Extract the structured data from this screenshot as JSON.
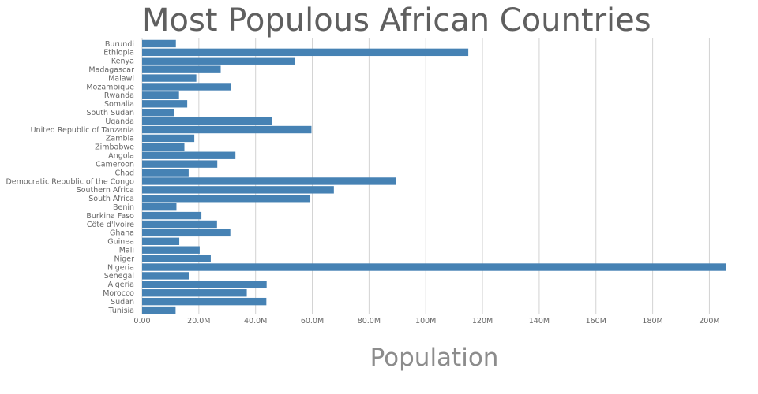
{
  "chart_data": {
    "type": "bar",
    "orientation": "horizontal",
    "title": "Most Populous African Countries",
    "xlabel": "Population",
    "ylabel": "",
    "xlim": [
      0,
      206000000
    ],
    "grid": "vertical",
    "bar_color": "#4682b4",
    "x_ticks": [
      0,
      20000000,
      40000000,
      60000000,
      80000000,
      100000000,
      120000000,
      140000000,
      160000000,
      180000000,
      200000000
    ],
    "x_tick_labels": [
      "0.00",
      "20.0M",
      "40.0M",
      "60.0M",
      "80.0M",
      "100M",
      "120M",
      "140M",
      "160M",
      "180M",
      "200M"
    ],
    "categories": [
      "Burundi",
      "Ethiopia",
      "Kenya",
      "Madagascar",
      "Malawi",
      "Mozambique",
      "Rwanda",
      "Somalia",
      "South Sudan",
      "Uganda",
      "United Republic of Tanzania",
      "Zambia",
      "Zimbabwe",
      "Angola",
      "Cameroon",
      "Chad",
      "Democratic Republic of the Congo",
      "Southern Africa",
      "South Africa",
      "Benin",
      "Burkina Faso",
      "Côte d'Ivoire",
      "Ghana",
      "Guinea",
      "Mali",
      "Niger",
      "Nigeria",
      "Senegal",
      "Algeria",
      "Morocco",
      "Sudan",
      "Tunisia"
    ],
    "values": [
      11900000,
      115000000,
      53800000,
      27700000,
      19100000,
      31300000,
      13000000,
      15900000,
      11200000,
      45700000,
      59700000,
      18400000,
      14900000,
      32900000,
      26500000,
      16400000,
      89600000,
      67600000,
      59300000,
      12100000,
      20900000,
      26400000,
      31100000,
      13100000,
      20300000,
      24200000,
      206000000,
      16700000,
      43900000,
      36900000,
      43800000,
      11800000
    ]
  }
}
